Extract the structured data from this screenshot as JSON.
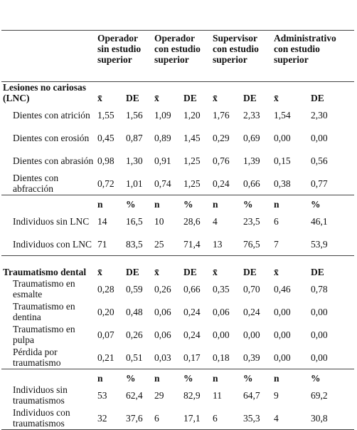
{
  "table": {
    "header": [
      "Operador sin estudio superior",
      "Operador con estudio superior",
      "Supervisor con estudio superior",
      "Administrativo con estudio superior"
    ],
    "sections": [
      {
        "title": "Lesiones no cariosas (LNC)",
        "blocks": [
          {
            "stats": [
              "x̄",
              "DE",
              "x̄",
              "DE",
              "x̄",
              "DE",
              "x̄",
              "DE"
            ],
            "rows": [
              [
                "Dientes con atrición",
                "1,55",
                "1,56",
                "1,09",
                "1,20",
                "1,76",
                "2,33",
                "1,54",
                "2,30"
              ],
              [
                "Dientes con erosión",
                "0,45",
                "0,87",
                "0,89",
                "1,45",
                "0,29",
                "0,69",
                "0,00",
                "0,00"
              ],
              [
                "Dientes con abrasión",
                "0,98",
                "1,30",
                "0,91",
                "1,25",
                "0,76",
                "1,39",
                "0,15",
                "0,56"
              ],
              [
                "Dientes con abfracción",
                "0,72",
                "1,01",
                "0,74",
                "1,25",
                "0,24",
                "0,66",
                "0,38",
                "0,77"
              ]
            ]
          },
          {
            "stats": [
              "n",
              "%",
              "n",
              "%",
              "n",
              "%",
              "n",
              "%"
            ],
            "rows": [
              [
                "Individuos sin LNC",
                "14",
                "16,5",
                "10",
                "28,6",
                "4",
                "23,5",
                "6",
                "46,1"
              ],
              [
                "Individuos con LNC",
                "71",
                "83,5",
                "25",
                "71,4",
                "13",
                "76,5",
                "7",
                "53,9"
              ]
            ]
          }
        ]
      },
      {
        "title": "Traumatismo dental",
        "blocks": [
          {
            "stats": [
              "x̄",
              "DE",
              "x̄",
              "DE",
              "x̄",
              "DE",
              "x̄",
              "DE"
            ],
            "rows": [
              [
                "Traumatismo en esmalte",
                "0,28",
                "0,59",
                "0,26",
                "0,66",
                "0,35",
                "0,70",
                "0,46",
                "0,78"
              ],
              [
                "Traumatismo en dentina",
                "0,20",
                "0,48",
                "0,06",
                "0,24",
                "0,06",
                "0,24",
                "0,00",
                "0,00"
              ],
              [
                "Traumatismo en pulpa",
                "0,07",
                "0,26",
                "0,06",
                "0,24",
                "0,00",
                "0,00",
                "0,00",
                "0,00"
              ],
              [
                "Pérdida por traumatismo",
                "0,21",
                "0,51",
                "0,03",
                "0,17",
                "0,18",
                "0,39",
                "0,00",
                "0,00"
              ]
            ]
          },
          {
            "stats": [
              "n",
              "%",
              "n",
              "%",
              "n",
              "%",
              "n",
              "%"
            ],
            "rows": [
              [
                "Individuos sin traumatismos",
                "53",
                "62,4",
                "29",
                "82,9",
                "11",
                "64,7",
                "9",
                "69,2"
              ],
              [
                "Individuos con traumatismos",
                "32",
                "37,6",
                "6",
                "17,1",
                "6",
                "35,3",
                "4",
                "30,8"
              ]
            ]
          }
        ]
      }
    ]
  }
}
